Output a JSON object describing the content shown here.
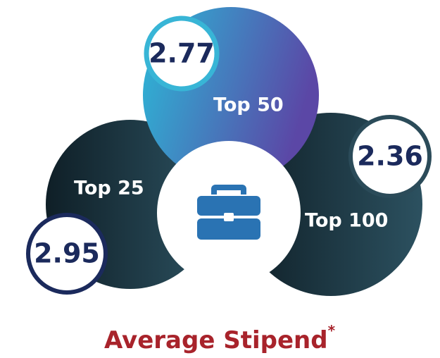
{
  "items": [
    {
      "label": "Top 25",
      "value": 2.95
    },
    {
      "label": "Top 50",
      "value": 2.77
    },
    {
      "label": "Top 100",
      "value": 2.36
    }
  ],
  "title": "Average Stipend",
  "footnote_mark": "*"
}
